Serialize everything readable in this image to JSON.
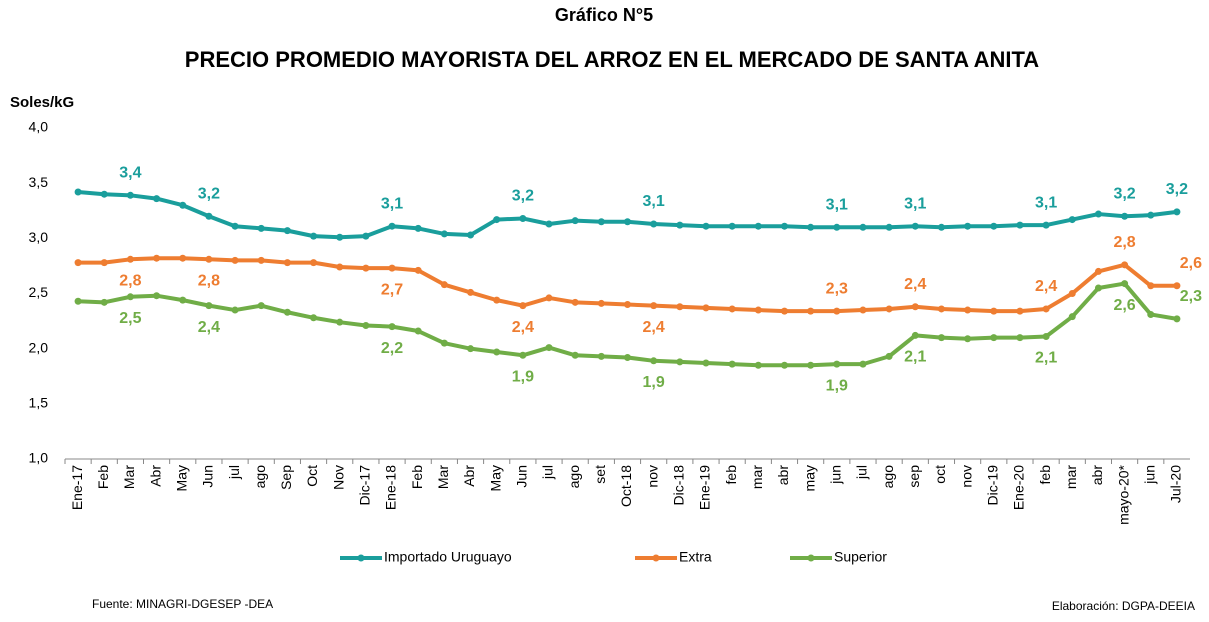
{
  "chart_data": {
    "type": "line",
    "title": "Gráfico N°5",
    "subtitle": "PRECIO PROMEDIO MAYORISTA DEL ARROZ EN EL MERCADO DE SANTA ANITA",
    "y_label": "Soles/kG",
    "source": "Fuente: MINAGRI-DGESEP -DEA",
    "credit": "Elaboración: DGPA-DEEIA",
    "categories": [
      "Ene-17",
      "Feb",
      "Mar",
      "Abr",
      "May",
      "Jun",
      "jul",
      "ago",
      "Sep",
      "Oct",
      "Nov",
      "Dic-17",
      "Ene-18",
      "Feb",
      "Mar",
      "Abr",
      "May",
      "Jun",
      "jul",
      "ago",
      "set",
      "Oct-18",
      "nov",
      "Dic-18",
      "Ene-19",
      "feb",
      "mar",
      "abr",
      "may",
      "jun",
      "jul",
      "ago",
      "sep",
      "oct",
      "nov",
      "Dic-19",
      "Ene-20",
      "feb",
      "mar",
      "abr",
      "mayo-20*",
      "jun",
      "Jul-20"
    ],
    "series": [
      {
        "name": "Importado Uruguayo",
        "color": "#1a9e9c",
        "values": [
          3.42,
          3.4,
          3.39,
          3.36,
          3.3,
          3.2,
          3.11,
          3.09,
          3.07,
          3.02,
          3.01,
          3.02,
          3.11,
          3.09,
          3.04,
          3.03,
          3.17,
          3.18,
          3.13,
          3.16,
          3.15,
          3.15,
          3.13,
          3.12,
          3.11,
          3.11,
          3.11,
          3.11,
          3.1,
          3.1,
          3.1,
          3.1,
          3.11,
          3.1,
          3.11,
          3.11,
          3.12,
          3.12,
          3.17,
          3.22,
          3.2,
          3.21,
          3.24
        ],
        "value_labels": [
          null,
          null,
          "3,4",
          null,
          null,
          "3,2",
          null,
          null,
          null,
          null,
          null,
          null,
          "3,1",
          null,
          null,
          null,
          null,
          "3,2",
          null,
          null,
          null,
          null,
          "3,1",
          null,
          null,
          null,
          null,
          null,
          null,
          "3,1",
          null,
          null,
          "3,1",
          null,
          null,
          null,
          null,
          "3,1",
          null,
          null,
          "3,2",
          null,
          "3,2"
        ]
      },
      {
        "name": "Extra",
        "color": "#ee7d31",
        "values": [
          2.78,
          2.78,
          2.81,
          2.82,
          2.82,
          2.81,
          2.8,
          2.8,
          2.78,
          2.78,
          2.74,
          2.73,
          2.73,
          2.71,
          2.58,
          2.51,
          2.44,
          2.39,
          2.46,
          2.42,
          2.41,
          2.4,
          2.39,
          2.38,
          2.37,
          2.36,
          2.35,
          2.34,
          2.34,
          2.34,
          2.35,
          2.36,
          2.38,
          2.36,
          2.35,
          2.34,
          2.34,
          2.36,
          2.5,
          2.7,
          2.76,
          2.57,
          2.57
        ],
        "value_labels": [
          null,
          null,
          "2,8",
          null,
          null,
          "2,8",
          null,
          null,
          null,
          null,
          null,
          null,
          "2,7",
          null,
          null,
          null,
          null,
          "2,4",
          null,
          null,
          null,
          null,
          "2,4",
          null,
          null,
          null,
          null,
          null,
          null,
          "2,3",
          null,
          null,
          "2,4",
          null,
          null,
          null,
          null,
          "2,4",
          null,
          null,
          "2,8",
          null,
          "2,6"
        ]
      },
      {
        "name": "Superior",
        "color": "#70ad47",
        "values": [
          2.43,
          2.42,
          2.47,
          2.48,
          2.44,
          2.39,
          2.35,
          2.39,
          2.33,
          2.28,
          2.24,
          2.21,
          2.2,
          2.16,
          2.05,
          2.0,
          1.97,
          1.94,
          2.01,
          1.94,
          1.93,
          1.92,
          1.89,
          1.88,
          1.87,
          1.86,
          1.85,
          1.85,
          1.85,
          1.86,
          1.86,
          1.93,
          2.12,
          2.1,
          2.09,
          2.1,
          2.1,
          2.11,
          2.29,
          2.55,
          2.59,
          2.31,
          2.27
        ],
        "value_labels": [
          null,
          null,
          "2,5",
          null,
          null,
          "2,4",
          null,
          null,
          null,
          null,
          null,
          null,
          "2,2",
          null,
          null,
          null,
          null,
          "1,9",
          null,
          null,
          null,
          null,
          "1,9",
          null,
          null,
          null,
          null,
          null,
          null,
          "1,9",
          null,
          null,
          "2,1",
          null,
          null,
          null,
          null,
          "2,1",
          null,
          null,
          "2,6",
          null,
          "2,3"
        ]
      }
    ],
    "ylim": [
      1.0,
      4.0
    ],
    "yticks": [
      {
        "value": 1.0,
        "label": "1,0"
      },
      {
        "value": 1.5,
        "label": "1,5"
      },
      {
        "value": 2.0,
        "label": "2,0"
      },
      {
        "value": 2.5,
        "label": "2,5"
      },
      {
        "value": 3.0,
        "label": "3,0"
      },
      {
        "value": 3.5,
        "label": "3,5"
      },
      {
        "value": 4.0,
        "label": "4,0"
      }
    ],
    "grid": false,
    "legend": "bottom"
  }
}
